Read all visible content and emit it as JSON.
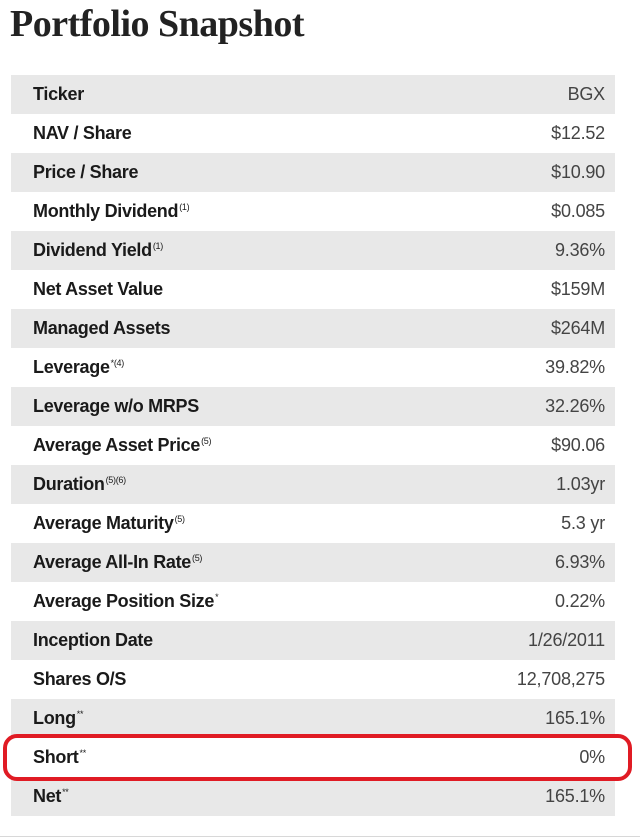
{
  "title": "Portfolio Snapshot",
  "rows": [
    {
      "label": "Ticker",
      "sup": "",
      "value": "BGX"
    },
    {
      "label": "NAV / Share",
      "sup": "",
      "value": "$12.52"
    },
    {
      "label": "Price / Share",
      "sup": "",
      "value": "$10.90"
    },
    {
      "label": "Monthly Dividend",
      "sup": "(1)",
      "value": "$0.085"
    },
    {
      "label": "Dividend Yield",
      "sup": "(1)",
      "value": "9.36%"
    },
    {
      "label": "Net Asset Value",
      "sup": "",
      "value": "$159M"
    },
    {
      "label": "Managed Assets",
      "sup": "",
      "value": "$264M"
    },
    {
      "label": "Leverage",
      "sup": "*(4)",
      "value": "39.82%"
    },
    {
      "label": "Leverage w/o MRPS",
      "sup": "",
      "value": "32.26%"
    },
    {
      "label": "Average Asset Price",
      "sup": "(5)",
      "value": "$90.06"
    },
    {
      "label": "Duration",
      "sup": "(5)(6)",
      "value": "1.03yr"
    },
    {
      "label": "Average Maturity",
      "sup": "(5)",
      "value": "5.3 yr"
    },
    {
      "label": "Average All-In Rate",
      "sup": "(5)",
      "value": "6.93%"
    },
    {
      "label": "Average Position Size",
      "sup": "*",
      "value": "0.22%"
    },
    {
      "label": "Inception Date",
      "sup": "",
      "value": "1/26/2011"
    },
    {
      "label": "Shares O/S",
      "sup": "",
      "value": "12,708,275"
    },
    {
      "label": "Long",
      "sup": "**",
      "value": "165.1%"
    },
    {
      "label": "Short",
      "sup": "**",
      "value": "0%"
    },
    {
      "label": "Net",
      "sup": "**",
      "value": "165.1%"
    }
  ],
  "colors": {
    "row_shade": "#e8e8e8",
    "highlight": "#e01b24"
  }
}
